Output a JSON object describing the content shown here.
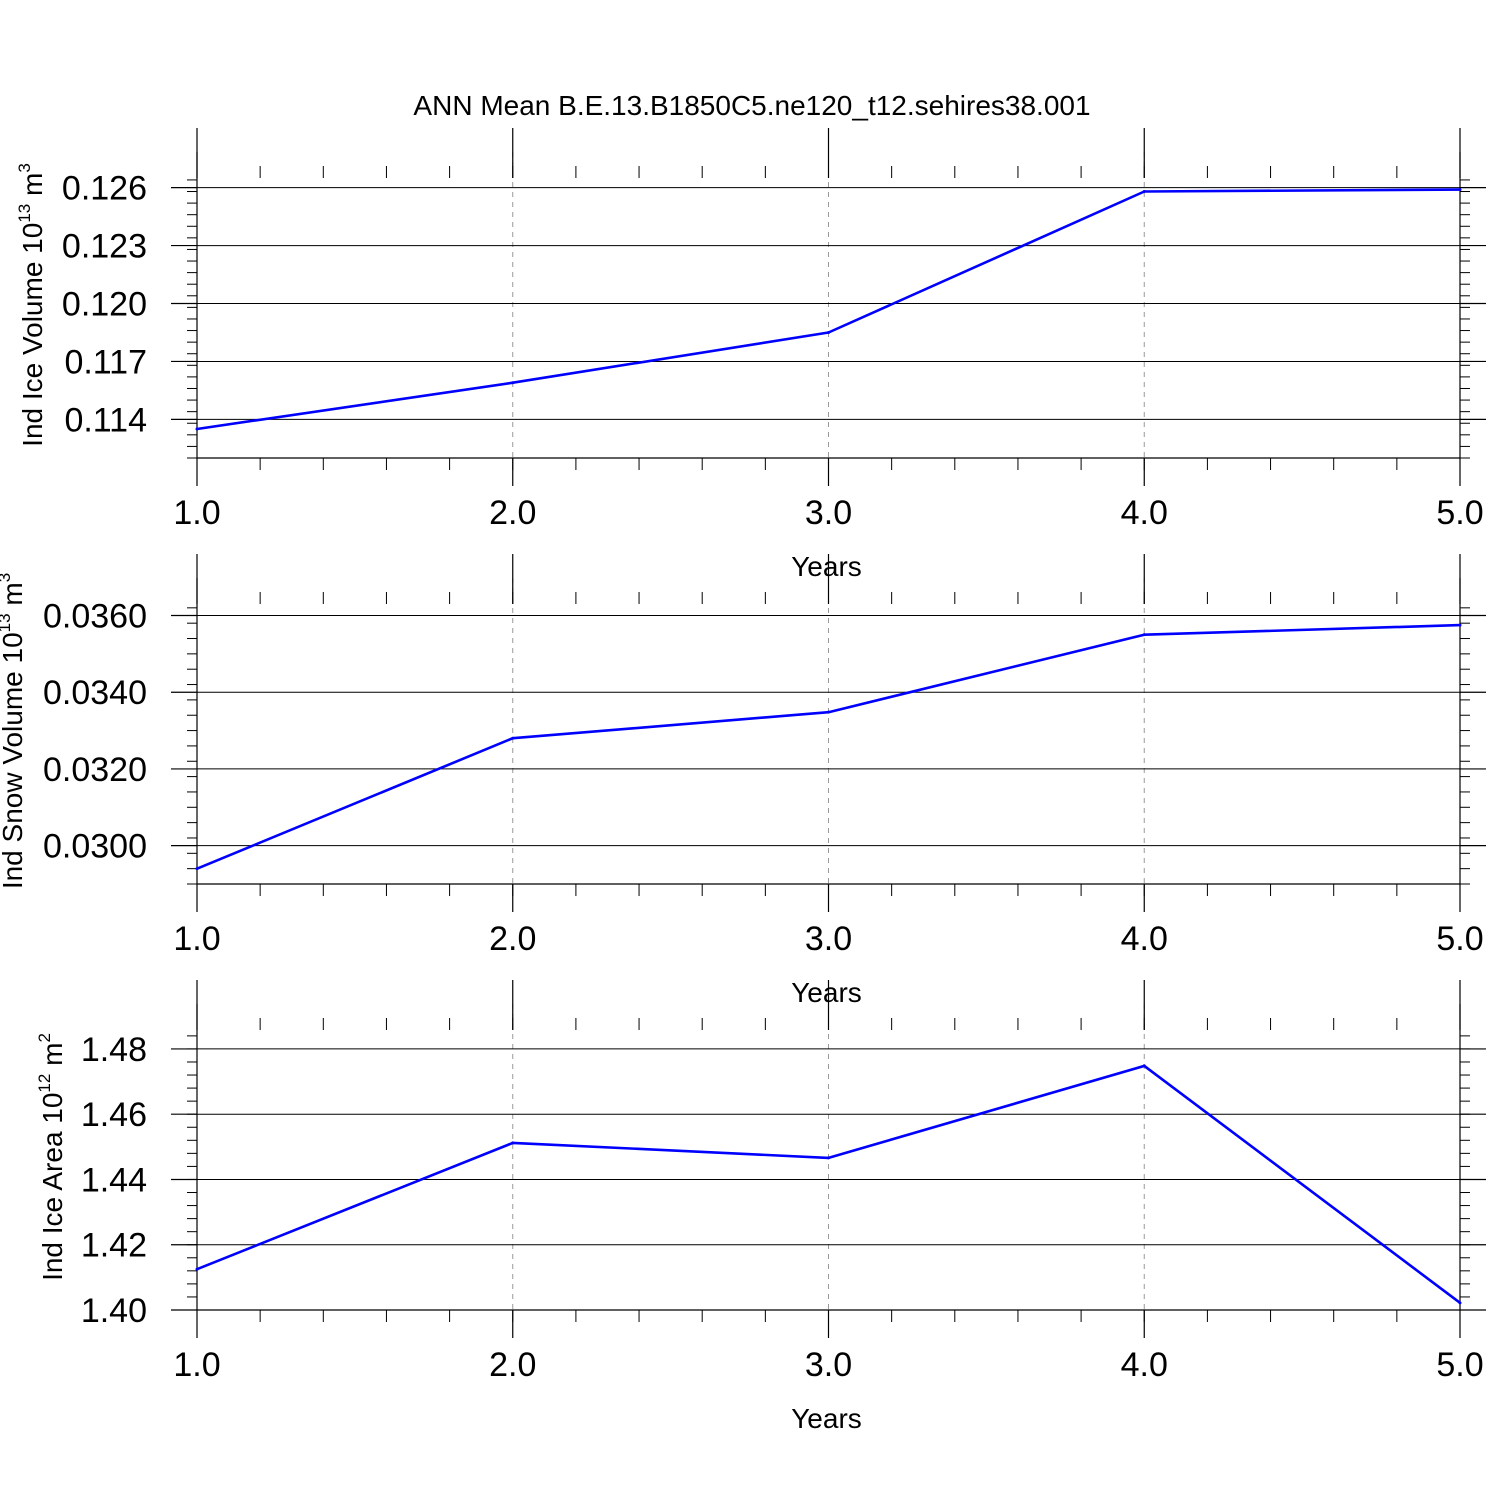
{
  "title": "ANN Mean B.E.13.B1850C5.ne120_t12.sehires38.001",
  "colors": {
    "line": "#0000ff",
    "axis": "#000000",
    "grid": "#999999"
  },
  "chart_data": [
    {
      "type": "line",
      "name": "ice-volume",
      "x": [
        1,
        2,
        3,
        4,
        5
      ],
      "values": [
        0.1135,
        0.1159,
        0.1185,
        0.1258,
        0.1259
      ],
      "xlim": [
        1,
        5
      ],
      "ylim": [
        0.112,
        0.1265
      ],
      "xticks": [
        1,
        2,
        3,
        4,
        5
      ],
      "xtick_labels": [
        "1.0",
        "2.0",
        "3.0",
        "4.0",
        "5.0"
      ],
      "yticks": [
        0.114,
        0.117,
        0.12,
        0.123,
        0.126
      ],
      "ytick_labels": [
        "0.114",
        "0.117",
        "0.120",
        "0.123",
        "0.126"
      ],
      "minor_y_step": 0.0006,
      "xlabel": "Years",
      "ylabel": "Ind Ice Volume 10",
      "ylabel_exp": "13",
      "ylabel_unit": " m",
      "ylabel_unit_exp": "3",
      "grid": "vertical-dashed"
    },
    {
      "type": "line",
      "name": "snow-volume",
      "x": [
        1,
        2,
        3,
        4,
        5
      ],
      "values": [
        0.0294,
        0.0328,
        0.03348,
        0.0355,
        0.03575
      ],
      "xlim": [
        1,
        5
      ],
      "ylim": [
        0.029,
        0.0363
      ],
      "xticks": [
        1,
        2,
        3,
        4,
        5
      ],
      "xtick_labels": [
        "1.0",
        "2.0",
        "3.0",
        "4.0",
        "5.0"
      ],
      "yticks": [
        0.03,
        0.032,
        0.034,
        0.036
      ],
      "ytick_labels": [
        "0.0300",
        "0.0320",
        "0.0340",
        "0.0360"
      ],
      "minor_y_step": 0.0004,
      "xlabel": "Years",
      "ylabel": "Ind Snow Volume 10",
      "ylabel_exp": "13",
      "ylabel_unit": " m",
      "ylabel_unit_exp": "3",
      "grid": "vertical-dashed"
    },
    {
      "type": "line",
      "name": "ice-area",
      "x": [
        1,
        2,
        3,
        4,
        5
      ],
      "values": [
        1.4125,
        1.4512,
        1.4466,
        1.4748,
        1.4022
      ],
      "xlim": [
        1,
        5
      ],
      "ylim": [
        1.4,
        1.4858
      ],
      "xticks": [
        1,
        2,
        3,
        4,
        5
      ],
      "xtick_labels": [
        "1.0",
        "2.0",
        "3.0",
        "4.0",
        "5.0"
      ],
      "yticks": [
        1.4,
        1.42,
        1.44,
        1.46,
        1.48
      ],
      "ytick_labels": [
        "1.40",
        "1.42",
        "1.44",
        "1.46",
        "1.48"
      ],
      "minor_y_step": 0.004,
      "xlabel": "Years",
      "ylabel": "Ind Ice Area 10",
      "ylabel_exp": "12",
      "ylabel_unit": " m",
      "ylabel_unit_exp": "2",
      "grid": "vertical-dashed"
    }
  ]
}
